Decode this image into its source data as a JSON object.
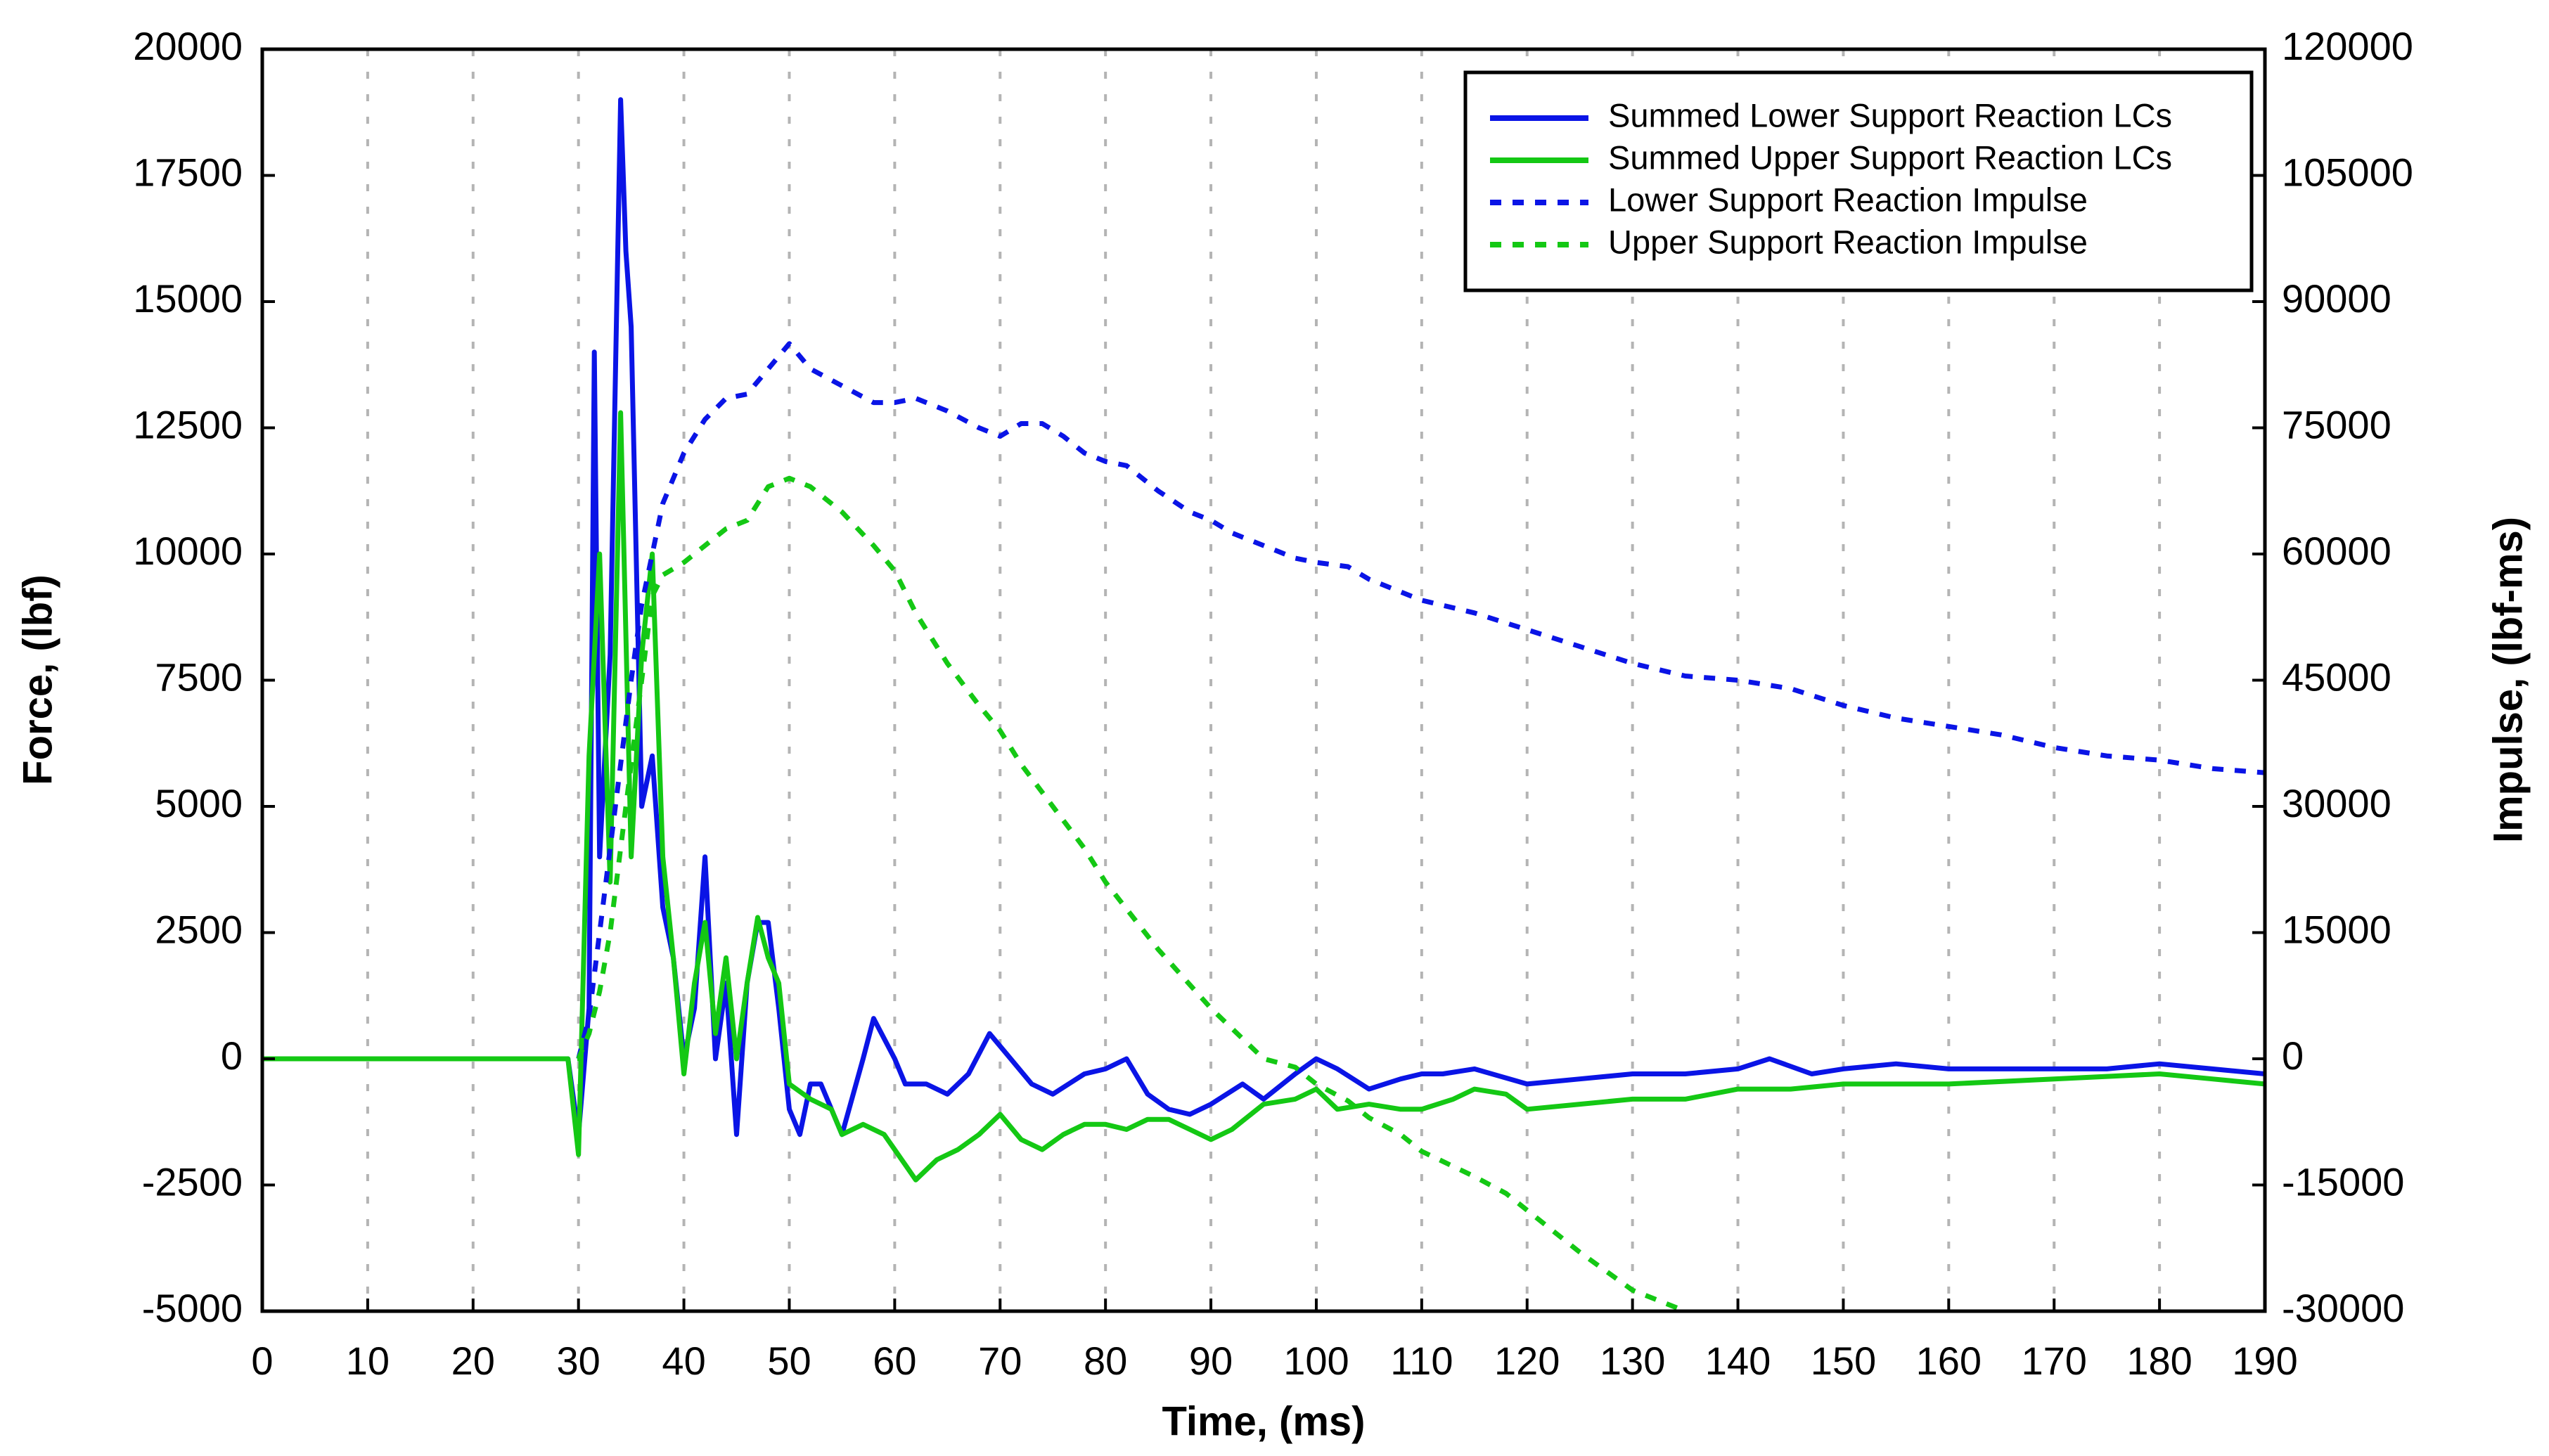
{
  "chart_data": {
    "type": "line",
    "xlabel": "Time, (ms)",
    "ylabel": "Force, (lbf)",
    "y2label": "Impulse, (lbf-ms)",
    "xlim": [
      0,
      190
    ],
    "xticks": [
      0,
      10,
      20,
      30,
      40,
      50,
      60,
      70,
      80,
      90,
      100,
      110,
      120,
      130,
      140,
      150,
      160,
      170,
      180,
      190
    ],
    "ylim": [
      -5000,
      20000
    ],
    "yticks": [
      -5000,
      -2500,
      0,
      2500,
      5000,
      7500,
      10000,
      12500,
      15000,
      17500,
      20000
    ],
    "y2lim": [
      -30000,
      120000
    ],
    "y2ticks": [
      -30000,
      -15000,
      0,
      15000,
      30000,
      45000,
      60000,
      75000,
      90000,
      105000,
      120000
    ],
    "grid": "x",
    "legend": "upper right",
    "series": [
      {
        "name": "Summed Lower Support Reaction LCs",
        "color": "#0a14e6",
        "linestyle": "solid",
        "x": [
          0,
          10,
          20,
          29,
          30,
          31,
          31.5,
          32,
          33,
          34,
          34.5,
          35,
          36,
          37,
          38,
          39,
          40,
          41,
          42,
          43,
          44,
          45,
          46,
          47,
          48,
          49,
          50,
          51,
          52,
          53,
          55,
          57,
          58,
          60,
          61,
          63,
          65,
          67,
          69,
          71,
          73,
          75,
          78,
          80,
          82,
          84,
          86,
          88,
          90,
          93,
          95,
          98,
          100,
          102,
          105,
          108,
          110,
          112,
          115,
          120,
          125,
          130,
          135,
          140,
          143,
          147,
          150,
          155,
          160,
          165,
          170,
          175,
          180,
          185,
          190
        ],
        "values": [
          0,
          0,
          0,
          0,
          -1500,
          1000,
          14000,
          4000,
          8000,
          19000,
          16000,
          14500,
          5000,
          6000,
          3000,
          2000,
          0,
          1000,
          4000,
          0,
          1500,
          -1500,
          1500,
          2700,
          2700,
          1000,
          -1000,
          -1500,
          -500,
          -500,
          -1500,
          0,
          800,
          0,
          -500,
          -500,
          -700,
          -300,
          500,
          0,
          -500,
          -700,
          -300,
          -200,
          0,
          -700,
          -1000,
          -1100,
          -900,
          -500,
          -800,
          -300,
          0,
          -200,
          -600,
          -400,
          -300,
          -300,
          -200,
          -500,
          -400,
          -300,
          -300,
          -200,
          0,
          -300,
          -200,
          -100,
          -200,
          -200,
          -200,
          -200,
          -100,
          -200,
          -300
        ]
      },
      {
        "name": "Summed Upper Support Reaction LCs",
        "color": "#14c814",
        "linestyle": "solid",
        "x": [
          0,
          10,
          20,
          29,
          30,
          31,
          32,
          33,
          34,
          35,
          36,
          37,
          38,
          39,
          40,
          41,
          42,
          43,
          44,
          45,
          46,
          47,
          48,
          49,
          50,
          52,
          54,
          55,
          57,
          59,
          61,
          62,
          64,
          66,
          68,
          70,
          72,
          74,
          76,
          78,
          80,
          82,
          84,
          86,
          88,
          90,
          92,
          95,
          98,
          100,
          102,
          105,
          108,
          110,
          113,
          115,
          118,
          120,
          125,
          130,
          135,
          140,
          145,
          150,
          155,
          160,
          170,
          180,
          185,
          190
        ],
        "values": [
          0,
          0,
          0,
          0,
          -1900,
          6000,
          10000,
          3500,
          12800,
          4000,
          8000,
          10000,
          4000,
          2000,
          -300,
          1500,
          2700,
          500,
          2000,
          0,
          1500,
          2800,
          2000,
          1500,
          -500,
          -800,
          -1000,
          -1500,
          -1300,
          -1500,
          -2100,
          -2400,
          -2000,
          -1800,
          -1500,
          -1100,
          -1600,
          -1800,
          -1500,
          -1300,
          -1300,
          -1400,
          -1200,
          -1200,
          -1400,
          -1600,
          -1400,
          -900,
          -800,
          -600,
          -1000,
          -900,
          -1000,
          -1000,
          -800,
          -600,
          -700,
          -1000,
          -900,
          -800,
          -800,
          -600,
          -600,
          -500,
          -500,
          -500,
          -400,
          -300,
          -400,
          -500
        ]
      },
      {
        "name": "Lower Support Reaction Impulse",
        "color": "#0a14e6",
        "linestyle": "dashed",
        "axis": "y2",
        "x": [
          0,
          30,
          31,
          32,
          33,
          34,
          35,
          36,
          37,
          38,
          40,
          42,
          44,
          46,
          48,
          50,
          52,
          55,
          58,
          60,
          62,
          65,
          68,
          70,
          72,
          74,
          76,
          78,
          80,
          82,
          85,
          88,
          90,
          92,
          95,
          98,
          100,
          103,
          105,
          108,
          110,
          115,
          120,
          125,
          130,
          135,
          140,
          145,
          150,
          155,
          160,
          165,
          170,
          175,
          180,
          185,
          190
        ],
        "values": [
          0,
          0,
          5000,
          15000,
          25000,
          35000,
          45000,
          54000,
          60000,
          66000,
          72000,
          76000,
          78500,
          79000,
          82000,
          85000,
          82000,
          80000,
          78000,
          78000,
          78500,
          77000,
          75000,
          74000,
          75500,
          75500,
          74000,
          72000,
          71000,
          70500,
          67500,
          65000,
          64000,
          62500,
          61000,
          59500,
          59000,
          58500,
          57000,
          55500,
          54500,
          53000,
          51000,
          49000,
          47000,
          45500,
          45000,
          44000,
          42000,
          40500,
          39500,
          38500,
          37000,
          36000,
          35500,
          34500,
          34000
        ]
      },
      {
        "name": "Upper Support Reaction Impulse",
        "color": "#14c814",
        "linestyle": "dashed",
        "axis": "y2",
        "x": [
          0,
          30,
          31,
          32,
          33,
          34,
          35,
          36,
          37,
          38,
          40,
          42,
          44,
          46,
          48,
          50,
          52,
          55,
          58,
          60,
          62,
          65,
          68,
          70,
          72,
          75,
          78,
          80,
          85,
          90,
          95,
          98,
          100,
          103,
          105,
          108,
          110,
          115,
          118,
          120,
          125,
          130,
          135
        ],
        "values": [
          0,
          0,
          3000,
          8000,
          15000,
          25000,
          35000,
          45000,
          55000,
          57500,
          59000,
          61000,
          63000,
          64000,
          68000,
          69000,
          68000,
          65000,
          61000,
          58000,
          53000,
          47000,
          42000,
          39000,
          35000,
          30000,
          25000,
          21000,
          13000,
          6000,
          0,
          -1000,
          -3000,
          -5000,
          -7000,
          -9000,
          -11000,
          -14000,
          -16000,
          -18000,
          -23000,
          -27500,
          -30000
        ]
      }
    ]
  }
}
